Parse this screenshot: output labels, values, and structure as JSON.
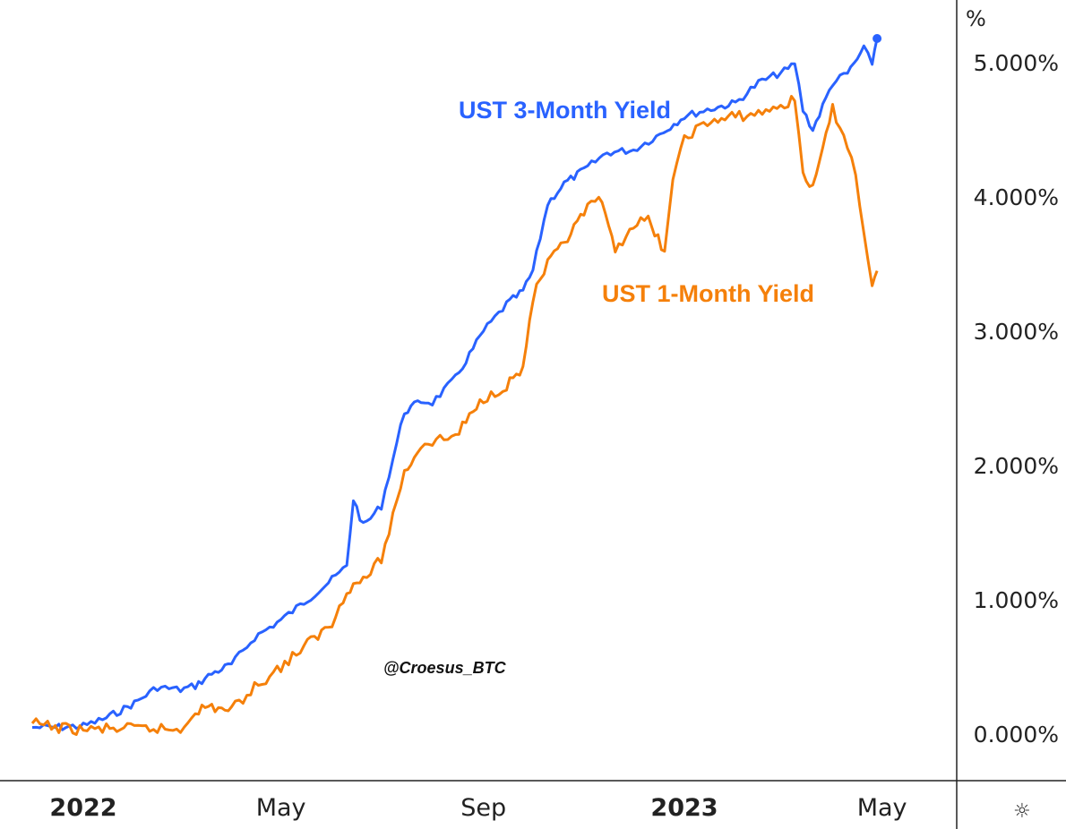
{
  "chart_data": {
    "type": "line",
    "title": "",
    "xlabel": "",
    "ylabel": "%",
    "ylim": [
      0,
      5.2
    ],
    "grid": false,
    "x_ticks": [
      {
        "label": "2022",
        "date": "2022-01-01",
        "bold": true
      },
      {
        "label": "May",
        "date": "2022-05-01",
        "bold": false
      },
      {
        "label": "Sep",
        "date": "2022-09-01",
        "bold": false
      },
      {
        "label": "2023",
        "date": "2023-01-01",
        "bold": true
      },
      {
        "label": "May",
        "date": "2023-05-01",
        "bold": false
      }
    ],
    "y_ticks": [
      {
        "value": 0,
        "label": "0.000%"
      },
      {
        "value": 1,
        "label": "1.000%"
      },
      {
        "value": 2,
        "label": "2.000%"
      },
      {
        "value": 3,
        "label": "3.000%"
      },
      {
        "value": 4,
        "label": "4.000%"
      },
      {
        "value": 5,
        "label": "5.000%"
      }
    ],
    "series": [
      {
        "name": "UST 3-Month Yield",
        "color": "#2962ff",
        "points": [
          [
            "2021-12-01",
            0.05
          ],
          [
            "2021-12-15",
            0.05
          ],
          [
            "2022-01-01",
            0.06
          ],
          [
            "2022-01-15",
            0.12
          ],
          [
            "2022-02-01",
            0.23
          ],
          [
            "2022-02-15",
            0.35
          ],
          [
            "2022-03-01",
            0.33
          ],
          [
            "2022-03-10",
            0.36
          ],
          [
            "2022-03-20",
            0.45
          ],
          [
            "2022-04-01",
            0.52
          ],
          [
            "2022-04-15",
            0.72
          ],
          [
            "2022-05-01",
            0.85
          ],
          [
            "2022-05-15",
            0.98
          ],
          [
            "2022-06-01",
            1.15
          ],
          [
            "2022-06-10",
            1.25
          ],
          [
            "2022-06-14",
            1.75
          ],
          [
            "2022-06-20",
            1.55
          ],
          [
            "2022-07-01",
            1.7
          ],
          [
            "2022-07-15",
            2.4
          ],
          [
            "2022-07-25",
            2.48
          ],
          [
            "2022-08-01",
            2.47
          ],
          [
            "2022-08-15",
            2.65
          ],
          [
            "2022-09-01",
            3.0
          ],
          [
            "2022-09-15",
            3.2
          ],
          [
            "2022-09-25",
            3.3
          ],
          [
            "2022-10-01",
            3.45
          ],
          [
            "2022-10-10",
            3.95
          ],
          [
            "2022-10-20",
            4.1
          ],
          [
            "2022-11-01",
            4.2
          ],
          [
            "2022-11-15",
            4.33
          ],
          [
            "2022-12-01",
            4.35
          ],
          [
            "2022-12-15",
            4.45
          ],
          [
            "2023-01-01",
            4.6
          ],
          [
            "2023-01-15",
            4.65
          ],
          [
            "2023-02-01",
            4.7
          ],
          [
            "2023-02-15",
            4.85
          ],
          [
            "2023-03-05",
            4.95
          ],
          [
            "2023-03-09",
            5.0
          ],
          [
            "2023-03-14",
            4.65
          ],
          [
            "2023-03-20",
            4.5
          ],
          [
            "2023-04-01",
            4.85
          ],
          [
            "2023-04-10",
            4.92
          ],
          [
            "2023-04-20",
            5.1
          ],
          [
            "2023-04-25",
            5.0
          ],
          [
            "2023-04-28",
            5.18
          ]
        ]
      },
      {
        "name": "UST 1-Month Yield",
        "color": "#f5800a",
        "points": [
          [
            "2021-12-01",
            0.08
          ],
          [
            "2021-12-15",
            0.05
          ],
          [
            "2022-01-01",
            0.03
          ],
          [
            "2022-01-15",
            0.04
          ],
          [
            "2022-02-01",
            0.04
          ],
          [
            "2022-02-15",
            0.04
          ],
          [
            "2022-03-01",
            0.03
          ],
          [
            "2022-03-10",
            0.18
          ],
          [
            "2022-03-20",
            0.2
          ],
          [
            "2022-04-01",
            0.18
          ],
          [
            "2022-04-15",
            0.35
          ],
          [
            "2022-05-01",
            0.5
          ],
          [
            "2022-05-15",
            0.65
          ],
          [
            "2022-06-01",
            0.82
          ],
          [
            "2022-06-10",
            1.08
          ],
          [
            "2022-06-20",
            1.15
          ],
          [
            "2022-07-01",
            1.3
          ],
          [
            "2022-07-15",
            1.95
          ],
          [
            "2022-07-25",
            2.15
          ],
          [
            "2022-08-01",
            2.18
          ],
          [
            "2022-08-15",
            2.22
          ],
          [
            "2022-09-01",
            2.5
          ],
          [
            "2022-09-15",
            2.6
          ],
          [
            "2022-09-25",
            2.72
          ],
          [
            "2022-10-01",
            3.25
          ],
          [
            "2022-10-10",
            3.5
          ],
          [
            "2022-10-20",
            3.65
          ],
          [
            "2022-11-01",
            3.88
          ],
          [
            "2022-11-10",
            4.0
          ],
          [
            "2022-11-20",
            3.6
          ],
          [
            "2022-12-01",
            3.8
          ],
          [
            "2022-12-10",
            3.82
          ],
          [
            "2022-12-20",
            3.6
          ],
          [
            "2022-12-25",
            4.1
          ],
          [
            "2023-01-01",
            4.45
          ],
          [
            "2023-01-15",
            4.55
          ],
          [
            "2023-02-01",
            4.6
          ],
          [
            "2023-02-15",
            4.62
          ],
          [
            "2023-03-05",
            4.7
          ],
          [
            "2023-03-09",
            4.72
          ],
          [
            "2023-03-14",
            4.2
          ],
          [
            "2023-03-20",
            4.05
          ],
          [
            "2023-04-01",
            4.65
          ],
          [
            "2023-04-10",
            4.4
          ],
          [
            "2023-04-15",
            4.15
          ],
          [
            "2023-04-20",
            3.75
          ],
          [
            "2023-04-25",
            3.35
          ],
          [
            "2023-04-28",
            3.45
          ]
        ]
      }
    ],
    "annotations": [
      {
        "text": "UST 3-Month Yield",
        "series": 0
      },
      {
        "text": "UST 1-Month Yield",
        "series": 1
      }
    ],
    "watermark": "@Croesus_BTC",
    "settings_glyph": "☼"
  }
}
